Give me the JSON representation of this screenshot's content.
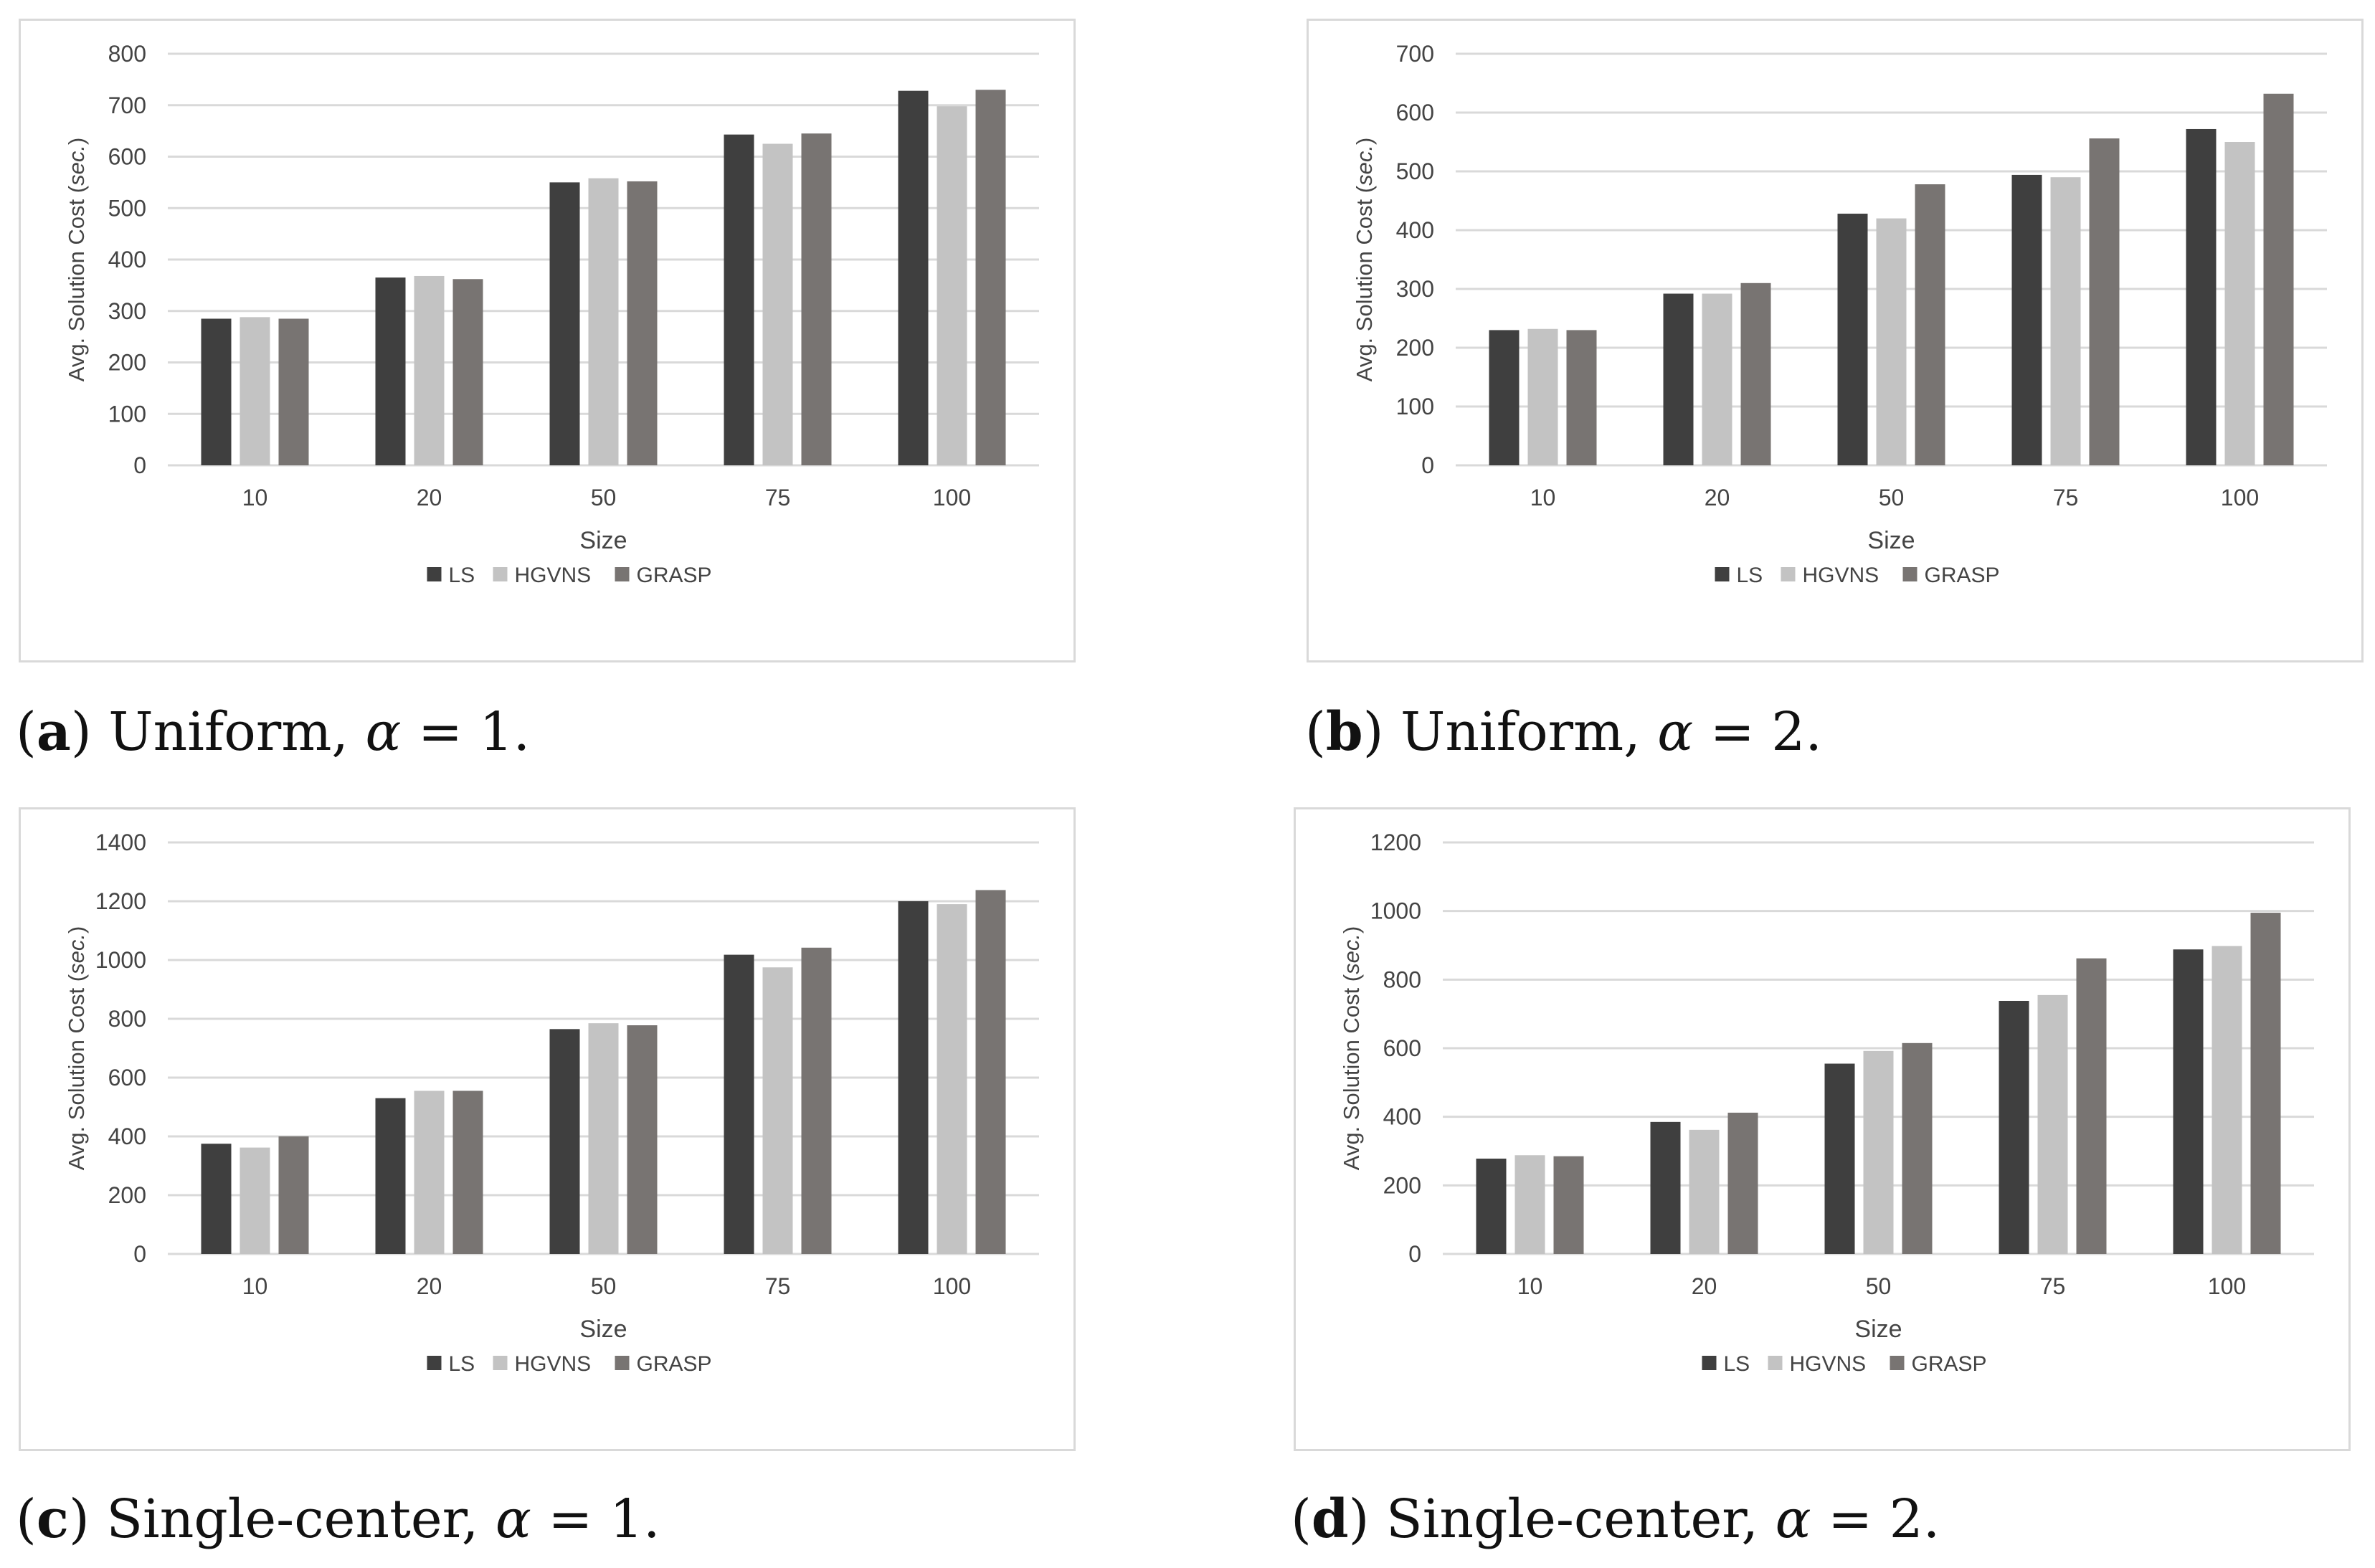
{
  "legend_colors": {
    "LS": "#3f3f3f",
    "HGVNS": "#c3c3c3",
    "GRASP": "#787472"
  },
  "chart_data": [
    {
      "type": "bar",
      "title": "",
      "xlabel": "Size",
      "ylabel_prefix": "Avg. Solution Cost (",
      "ylabel_unit": "sec.",
      "ylabel_suffix": ")",
      "categories": [
        "10",
        "20",
        "50",
        "75",
        "100"
      ],
      "ylim": [
        0,
        800
      ],
      "yticks": [
        "0",
        "100",
        "200",
        "300",
        "400",
        "500",
        "600",
        "700",
        "800"
      ],
      "series": [
        {
          "name": "LS",
          "values": [
            285,
            365,
            550,
            643,
            728
          ]
        },
        {
          "name": "HGVNS",
          "values": [
            288,
            368,
            558,
            625,
            698
          ]
        },
        {
          "name": "GRASP",
          "values": [
            285,
            362,
            552,
            645,
            730
          ]
        }
      ],
      "legend": "bottom",
      "grid": true,
      "caption": {
        "letter": "a",
        "text": " Uniform, ",
        "symbol": "α",
        "equation": " = 1."
      }
    },
    {
      "type": "bar",
      "title": "",
      "xlabel": "Size",
      "ylabel_prefix": "Avg. Solution Cost (",
      "ylabel_unit": "sec.",
      "ylabel_suffix": ")",
      "categories": [
        "10",
        "20",
        "50",
        "75",
        "100"
      ],
      "ylim": [
        0,
        700
      ],
      "yticks": [
        "0",
        "100",
        "200",
        "300",
        "400",
        "500",
        "600",
        "700"
      ],
      "series": [
        {
          "name": "LS",
          "values": [
            230,
            292,
            428,
            494,
            572
          ]
        },
        {
          "name": "HGVNS",
          "values": [
            232,
            292,
            420,
            490,
            550
          ]
        },
        {
          "name": "GRASP",
          "values": [
            230,
            310,
            478,
            556,
            632
          ]
        }
      ],
      "legend": "bottom",
      "grid": true,
      "caption": {
        "letter": "b",
        "text": " Uniform, ",
        "symbol": "α",
        "equation": " = 2."
      }
    },
    {
      "type": "bar",
      "title": "",
      "xlabel": "Size",
      "ylabel_prefix": "Avg. Solution Cost (",
      "ylabel_unit": "sec.",
      "ylabel_suffix": ")",
      "categories": [
        "10",
        "20",
        "50",
        "75",
        "100"
      ],
      "ylim": [
        0,
        1400
      ],
      "yticks": [
        "0",
        "200",
        "400",
        "600",
        "800",
        "1000",
        "1200",
        "1400"
      ],
      "series": [
        {
          "name": "LS",
          "values": [
            375,
            530,
            765,
            1018,
            1200
          ]
        },
        {
          "name": "HGVNS",
          "values": [
            362,
            555,
            785,
            975,
            1190
          ]
        },
        {
          "name": "GRASP",
          "values": [
            400,
            555,
            778,
            1042,
            1238
          ]
        }
      ],
      "legend": "bottom",
      "grid": true,
      "caption": {
        "letter": "c",
        "text": " Single-center, ",
        "symbol": "α",
        "equation": " = 1."
      }
    },
    {
      "type": "bar",
      "title": "",
      "xlabel": "Size",
      "ylabel_prefix": "Avg. Solution Cost (",
      "ylabel_unit": "sec.",
      "ylabel_suffix": ")",
      "categories": [
        "10",
        "20",
        "50",
        "75",
        "100"
      ],
      "ylim": [
        0,
        1200
      ],
      "yticks": [
        "0",
        "200",
        "400",
        "600",
        "800",
        "1000",
        "1200"
      ],
      "series": [
        {
          "name": "LS",
          "values": [
            278,
            385,
            555,
            738,
            888
          ]
        },
        {
          "name": "HGVNS",
          "values": [
            288,
            362,
            592,
            755,
            898
          ]
        },
        {
          "name": "GRASP",
          "values": [
            285,
            412,
            615,
            862,
            995
          ]
        }
      ],
      "legend": "bottom",
      "grid": true,
      "caption": {
        "letter": "d",
        "text": "  Single-center, ",
        "symbol": "α",
        "equation": " = 2."
      }
    }
  ]
}
